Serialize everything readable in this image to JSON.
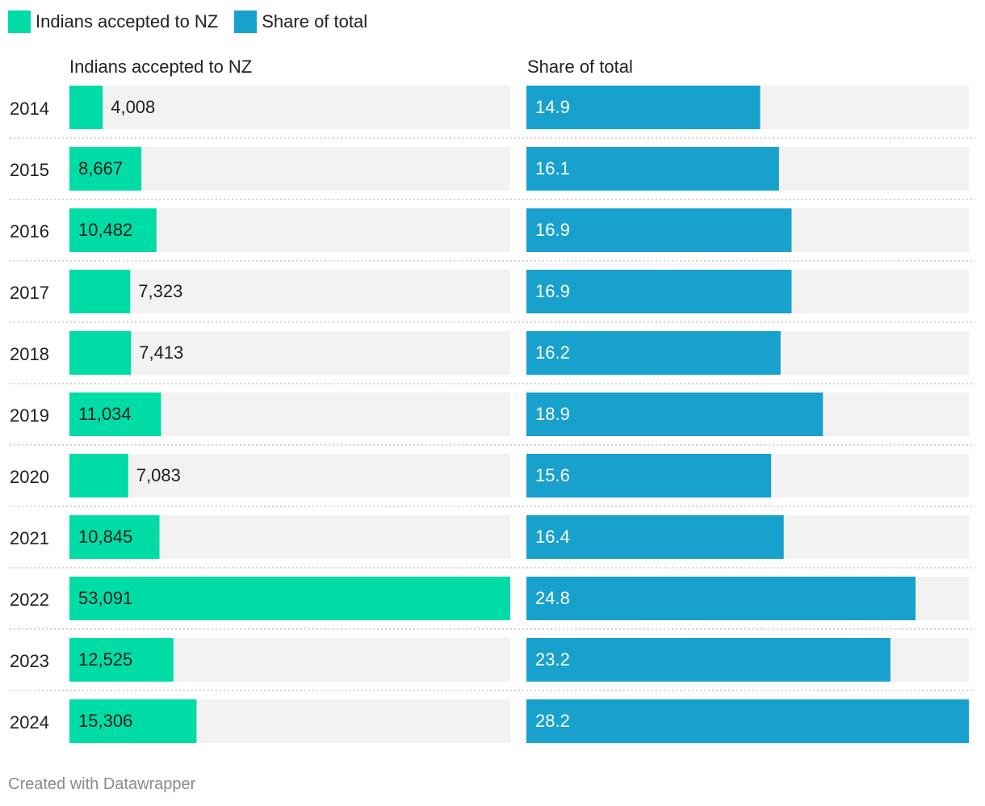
{
  "legend": [
    {
      "label": "Indians accepted to NZ",
      "color": "#00dca6"
    },
    {
      "label": "Share of total",
      "color": "#18a1cd"
    }
  ],
  "columns": {
    "left_title": "Indians accepted to NZ",
    "right_title": "Share of total"
  },
  "footer": "Created with Datawrapper",
  "chart_data": {
    "type": "bar",
    "orientation": "horizontal",
    "categories": [
      "2014",
      "2015",
      "2016",
      "2017",
      "2018",
      "2019",
      "2020",
      "2021",
      "2022",
      "2023",
      "2024"
    ],
    "series": [
      {
        "name": "Indians accepted to NZ",
        "color": "#00dca6",
        "values": [
          4008,
          8667,
          10482,
          7323,
          7413,
          11034,
          7083,
          10845,
          53091,
          12525,
          15306
        ],
        "labels": [
          "4,008",
          "8,667",
          "10,482",
          "7,323",
          "7,413",
          "11,034",
          "7,083",
          "10,845",
          "53,091",
          "12,525",
          "15,306"
        ],
        "xlim": [
          0,
          53091
        ]
      },
      {
        "name": "Share of total",
        "color": "#18a1cd",
        "values": [
          14.9,
          16.1,
          16.9,
          16.9,
          16.2,
          18.9,
          15.6,
          16.4,
          24.8,
          23.2,
          28.2
        ],
        "labels": [
          "14.9",
          "16.1",
          "16.9",
          "16.9",
          "16.2",
          "18.9",
          "15.6",
          "16.4",
          "24.8",
          "23.2",
          "28.2"
        ],
        "xlim": [
          0,
          28.2
        ]
      }
    ],
    "background_track_color": "#f2f2f2",
    "row_divider": "dotted"
  }
}
